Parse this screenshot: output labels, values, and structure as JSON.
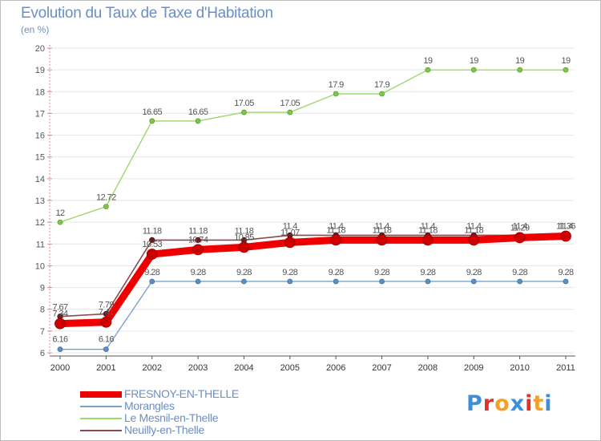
{
  "chart_data": {
    "type": "line",
    "title": "Evolution du Taux de Taxe d'Habitation",
    "subtitle": "(en %)",
    "xlabel": "",
    "ylabel": "",
    "ylim": [
      6,
      20
    ],
    "yticks": [
      6,
      7,
      8,
      9,
      10,
      11,
      12,
      13,
      14,
      15,
      16,
      17,
      18,
      19,
      20
    ],
    "x": [
      "2000",
      "2001",
      "2002",
      "2003",
      "2004",
      "2005",
      "2006",
      "2007",
      "2008",
      "2009",
      "2010",
      "2011"
    ],
    "series": [
      {
        "name": "Le Mesnil-en-Thelle",
        "color": "#9dd86a",
        "values": [
          12,
          12.72,
          16.65,
          16.65,
          17.05,
          17.05,
          17.9,
          17.9,
          19,
          19,
          19,
          19
        ],
        "labels": [
          "12",
          "12.72",
          "16.65",
          "16.65",
          "17.05",
          "17.05",
          "17.9",
          "17.9",
          "19",
          "19",
          "19",
          "19"
        ]
      },
      {
        "name": "Morangles",
        "color": "#7aa3cc",
        "values": [
          6.16,
          6.16,
          9.28,
          9.28,
          9.28,
          9.28,
          9.28,
          9.28,
          9.28,
          9.28,
          9.28,
          9.28
        ],
        "labels": [
          "6.16",
          "6.16",
          "9.28",
          "9.28",
          "9.28",
          "9.28",
          "9.28",
          "9.28",
          "9.28",
          "9.28",
          "9.28",
          "9.28"
        ]
      },
      {
        "name": "Neuilly-en-Thelle",
        "color": "#8c4a4f",
        "values": [
          7.67,
          7.79,
          11.18,
          11.18,
          11.18,
          11.4,
          11.4,
          11.4,
          11.4,
          11.4,
          11.4,
          11.4
        ],
        "labels": [
          "7.67",
          "7.79",
          "11.18",
          "11.18",
          "11.18",
          "11.4",
          "11.4",
          "11.4",
          "11.4",
          "11.4",
          "11.4",
          "11.4"
        ]
      },
      {
        "name": "FRESNOY-EN-THELLE",
        "color": "#ee0000",
        "values": [
          7.34,
          7.41,
          10.53,
          10.74,
          10.85,
          11.07,
          11.18,
          11.18,
          11.18,
          11.18,
          11.29,
          11.36
        ],
        "labels": [
          "7.34",
          "7.41",
          "10.53",
          "10.74",
          "10.85",
          "11.07",
          "11.18",
          "11.18",
          "11.18",
          "11.18",
          "11.29",
          "11.36"
        ]
      }
    ],
    "legend": [
      {
        "name": "FRESNOY-EN-THELLE",
        "color": "#ee0000"
      },
      {
        "name": "Morangles",
        "color": "#7aa3cc"
      },
      {
        "name": "Le Mesnil-en-Thelle",
        "color": "#9dd86a"
      },
      {
        "name": "Neuilly-en-Thelle",
        "color": "#8c4a4f"
      }
    ],
    "legend_position": "bottom-left"
  },
  "logo": {
    "letters": [
      "P",
      "r",
      "o",
      "x",
      "i",
      "t",
      "i"
    ],
    "colors": [
      "#3f8fd8",
      "#e4312b",
      "#f2a02a",
      "#3f8fd8",
      "#e4312b",
      "#f2a02a",
      "#3f8fd8"
    ]
  }
}
